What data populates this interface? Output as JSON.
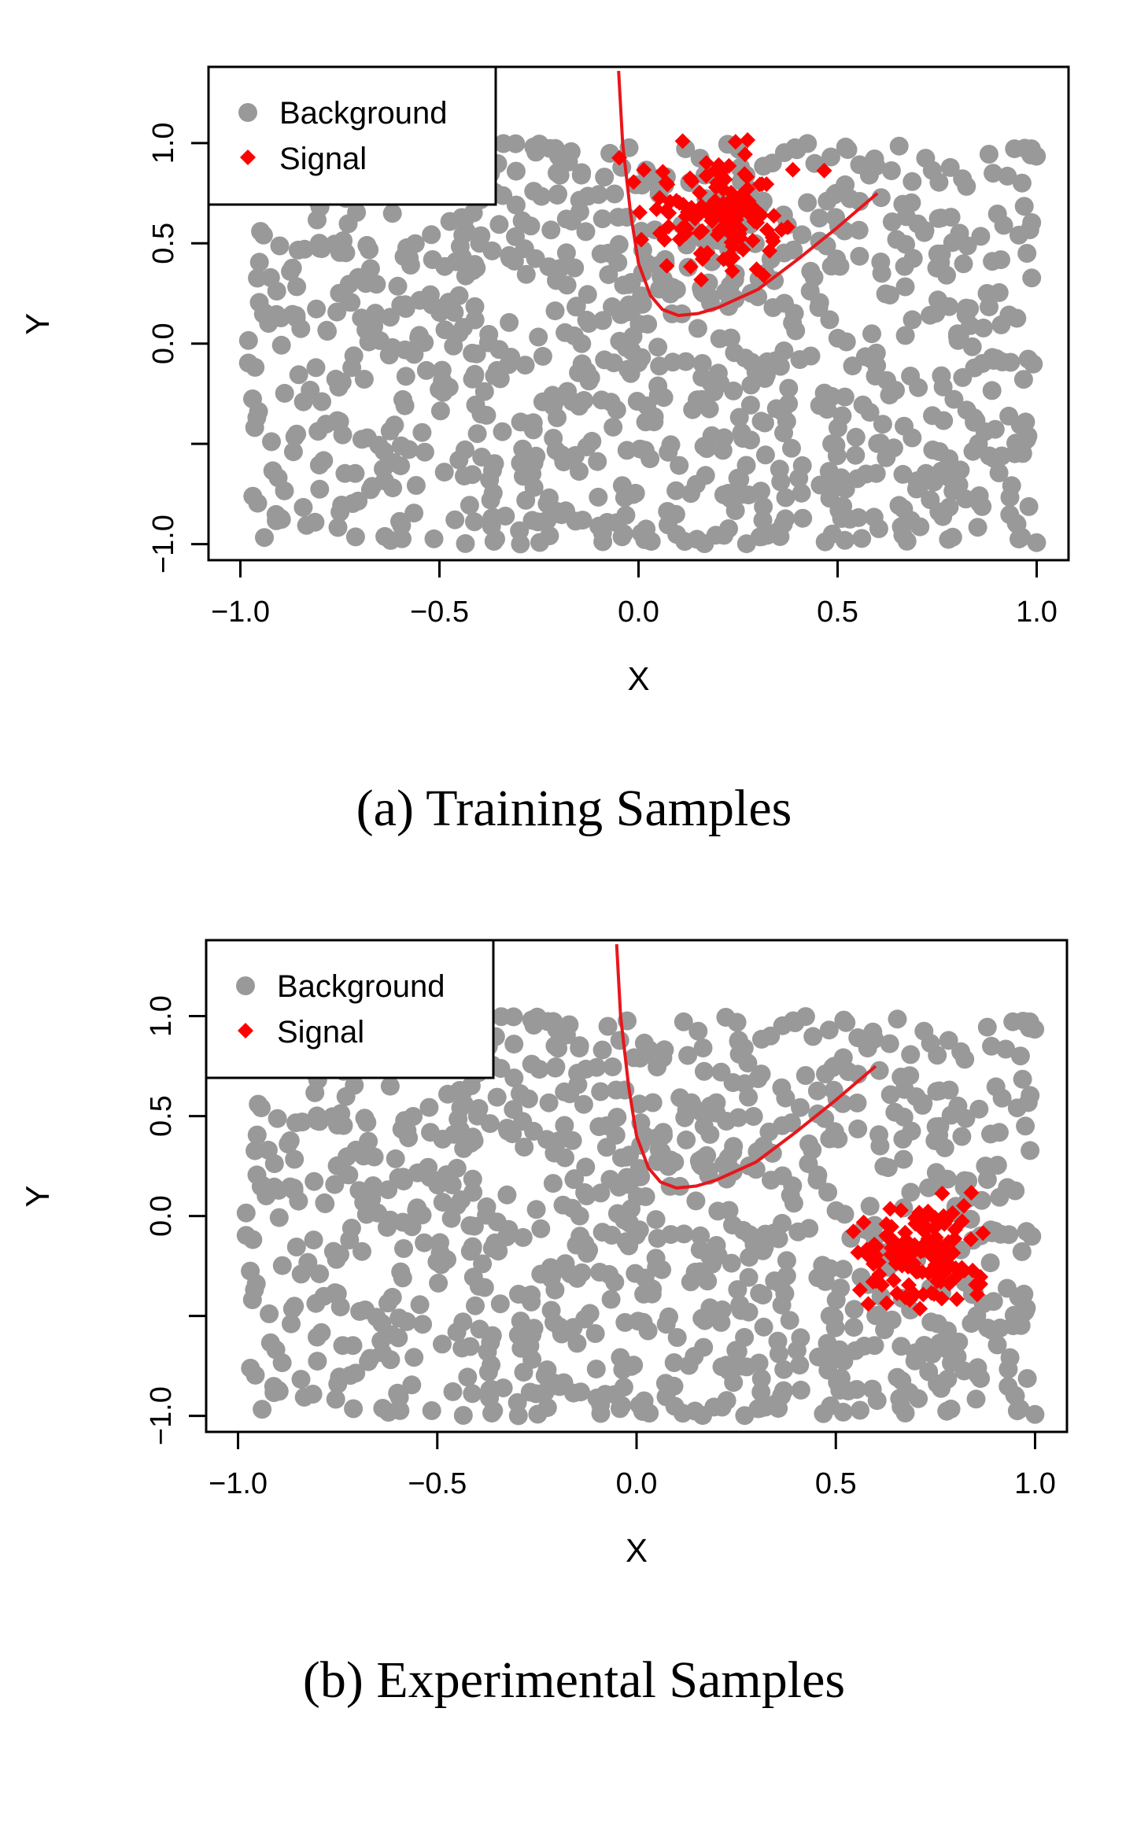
{
  "chart_data": [
    {
      "type": "scatter",
      "caption": "(a) Training Samples",
      "xlabel": "X",
      "ylabel": "Y",
      "xlim": [
        -1.08,
        1.08
      ],
      "ylim": [
        -1.08,
        1.38
      ],
      "xticks": [
        "−1.0",
        "−0.5",
        "0.0",
        "0.5",
        "1.0"
      ],
      "yticks": [
        "−1.0",
        "0.0",
        "0.5",
        "1.0"
      ],
      "legend": {
        "position": "top-left",
        "entries": [
          "Background",
          "Signal"
        ]
      },
      "colors": {
        "background": "#999999",
        "signal": "#ff0000",
        "curve": "#e8161b"
      },
      "series": [
        {
          "name": "Background",
          "marker": "circle",
          "distribution": "uniform",
          "x_range": [
            -0.98,
            1.0
          ],
          "y_range": [
            -1.0,
            1.0
          ],
          "count": 900
        },
        {
          "name": "Signal",
          "marker": "diamond",
          "distribution": "cluster",
          "center": [
            0.2,
            0.65
          ],
          "spread": [
            0.09,
            0.16
          ],
          "count": 130
        },
        {
          "name": "Decision boundary",
          "type": "line",
          "x": [
            -0.05,
            -0.04,
            -0.02,
            0.0,
            0.03,
            0.06,
            0.1,
            0.15,
            0.2,
            0.3,
            0.4,
            0.5,
            0.6
          ],
          "y": [
            1.36,
            1.0,
            0.65,
            0.4,
            0.24,
            0.17,
            0.14,
            0.15,
            0.18,
            0.27,
            0.42,
            0.58,
            0.75
          ]
        }
      ]
    },
    {
      "type": "scatter",
      "caption": "(b) Experimental Samples",
      "xlabel": "X",
      "ylabel": "Y",
      "xlim": [
        -1.08,
        1.08
      ],
      "ylim": [
        -1.08,
        1.38
      ],
      "xticks": [
        "−1.0",
        "−0.5",
        "0.0",
        "0.5",
        "1.0"
      ],
      "yticks": [
        "−1.0",
        "0.0",
        "0.5",
        "1.0"
      ],
      "legend": {
        "position": "top-left",
        "entries": [
          "Background",
          "Signal"
        ]
      },
      "colors": {
        "background": "#999999",
        "signal": "#ff0000",
        "curve": "#e8161b"
      },
      "series": [
        {
          "name": "Background",
          "marker": "circle",
          "distribution": "uniform",
          "x_range": [
            -0.98,
            1.0
          ],
          "y_range": [
            -1.0,
            1.0
          ],
          "count": 900
        },
        {
          "name": "Signal",
          "marker": "diamond",
          "distribution": "cluster",
          "center": [
            0.72,
            -0.2
          ],
          "spread": [
            0.09,
            0.14
          ],
          "count": 130
        },
        {
          "name": "Decision boundary",
          "type": "line",
          "x": [
            -0.05,
            -0.04,
            -0.02,
            0.0,
            0.03,
            0.06,
            0.1,
            0.15,
            0.2,
            0.3,
            0.4,
            0.5,
            0.6
          ],
          "y": [
            1.36,
            1.0,
            0.65,
            0.4,
            0.24,
            0.17,
            0.14,
            0.15,
            0.18,
            0.27,
            0.42,
            0.58,
            0.75
          ]
        }
      ]
    }
  ]
}
